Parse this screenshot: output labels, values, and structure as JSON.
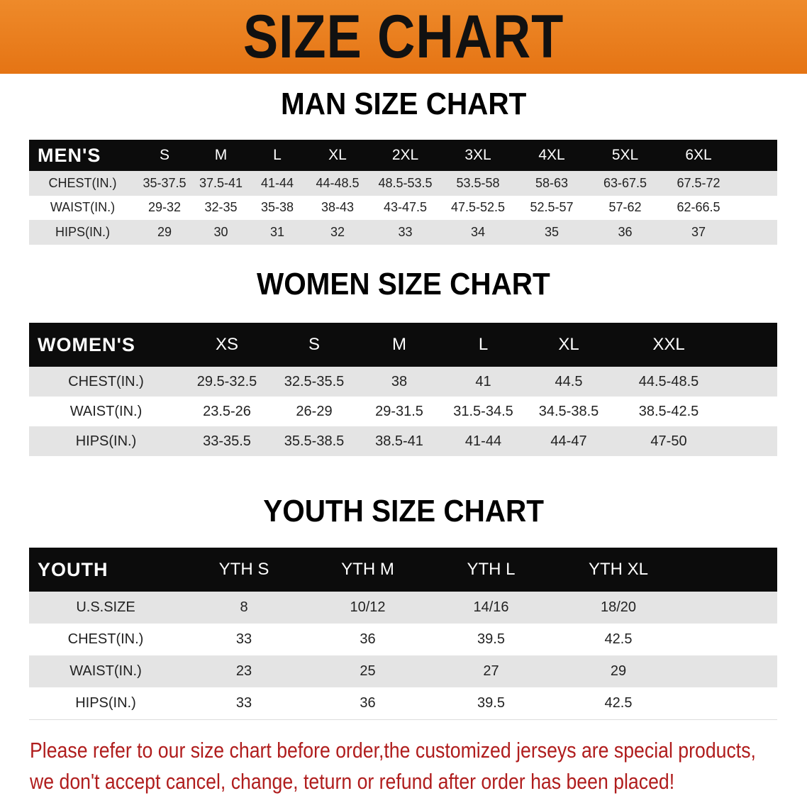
{
  "banner": {
    "title": "SIZE CHART",
    "color": "#e97c1c"
  },
  "men": {
    "title": "MAN SIZE CHART",
    "header": [
      "MEN'S",
      "S",
      "M",
      "L",
      "XL",
      "2XL",
      "3XL",
      "4XL",
      "5XL",
      "6XL"
    ],
    "rows": [
      [
        "CHEST(IN.)",
        "35-37.5",
        "37.5-41",
        "41-44",
        "44-48.5",
        "48.5-53.5",
        "53.5-58",
        "58-63",
        "63-67.5",
        "67.5-72"
      ],
      [
        "WAIST(IN.)",
        "29-32",
        "32-35",
        "35-38",
        "38-43",
        "43-47.5",
        "47.5-52.5",
        "52.5-57",
        "57-62",
        "62-66.5"
      ],
      [
        "HIPS(IN.)",
        "29",
        "30",
        "31",
        "32",
        "33",
        "34",
        "35",
        "36",
        "37"
      ]
    ]
  },
  "women": {
    "title": "WOMEN SIZE CHART",
    "header": [
      "WOMEN'S",
      "XS",
      "S",
      "M",
      "L",
      "XL",
      "XXL"
    ],
    "rows": [
      [
        "CHEST(IN.)",
        "29.5-32.5",
        "32.5-35.5",
        "38",
        "41",
        "44.5",
        "44.5-48.5"
      ],
      [
        "WAIST(IN.)",
        "23.5-26",
        "26-29",
        "29-31.5",
        "31.5-34.5",
        "34.5-38.5",
        "38.5-42.5"
      ],
      [
        "HIPS(IN.)",
        "33-35.5",
        "35.5-38.5",
        "38.5-41",
        "41-44",
        "44-47",
        "47-50"
      ]
    ]
  },
  "youth": {
    "title": "YOUTH SIZE CHART",
    "header": [
      "YOUTH",
      "YTH S",
      "YTH M",
      "YTH L",
      "YTH XL"
    ],
    "rows": [
      [
        "U.S.SIZE",
        "8",
        "10/12",
        "14/16",
        "18/20"
      ],
      [
        "CHEST(IN.)",
        "33",
        "36",
        "39.5",
        "42.5"
      ],
      [
        "WAIST(IN.)",
        "23",
        "25",
        "27",
        "29"
      ],
      [
        "HIPS(IN.)",
        "33",
        "36",
        "39.5",
        "42.5"
      ]
    ]
  },
  "notice": {
    "line1": "Please refer to our size chart before order,the customized jerseys are special products,",
    "line2": "we don't accept cancel, change, teturn or refund after order has been placed!",
    "color": "#b01d1d"
  }
}
